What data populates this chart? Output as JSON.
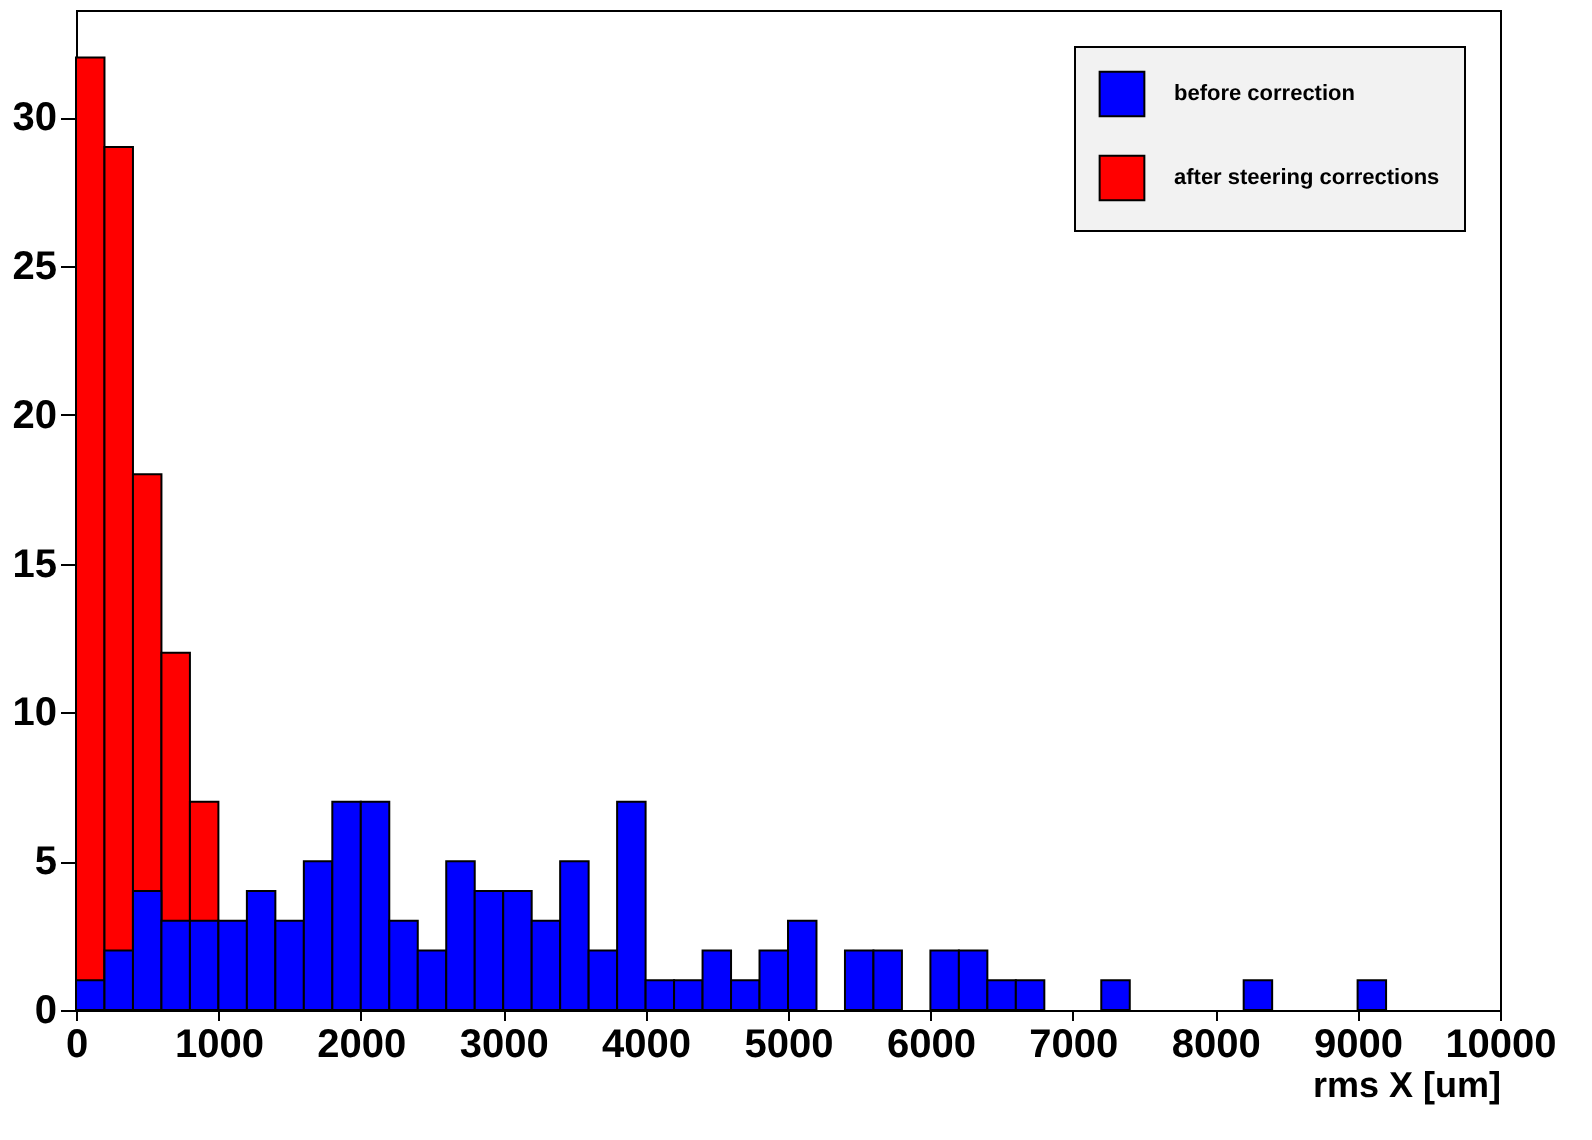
{
  "chart_data": {
    "type": "histogram",
    "xlabel": "rms X [um]",
    "bins": [
      0,
      200,
      400,
      600,
      800,
      1000,
      1200,
      1400,
      1600,
      1800,
      2000,
      2200,
      2400,
      2600,
      2800,
      3000,
      3200,
      3400,
      3600,
      3800,
      4000,
      4200,
      4400,
      4600,
      4800,
      5000,
      5200,
      5400,
      5600,
      5800,
      6000,
      6200,
      6400,
      6600,
      6800,
      7000,
      7200,
      7400,
      7600,
      7800,
      8000,
      8200,
      8400,
      8600,
      8800,
      9000,
      9200,
      9400,
      9600,
      9800,
      10000
    ],
    "series": [
      {
        "name": "before correction",
        "color": "#0000ff",
        "values": [
          1,
          2,
          4,
          3,
          3,
          3,
          4,
          3,
          5,
          7,
          7,
          3,
          2,
          5,
          4,
          4,
          3,
          5,
          2,
          7,
          1,
          1,
          2,
          1,
          2,
          3,
          0,
          2,
          2,
          0,
          2,
          2,
          1,
          1,
          0,
          0,
          1,
          0,
          0,
          0,
          0,
          1,
          0,
          0,
          0,
          1,
          0,
          0,
          0,
          0
        ]
      },
      {
        "name": "after steering corrections",
        "color": "#ff0000",
        "values": [
          32,
          29,
          18,
          12,
          7,
          0,
          0,
          0,
          0,
          0,
          0,
          0,
          0,
          0,
          0,
          0,
          0,
          0,
          0,
          0,
          0,
          0,
          0,
          0,
          0,
          0,
          0,
          0,
          0,
          0,
          0,
          0,
          0,
          0,
          0,
          0,
          0,
          0,
          0,
          0,
          0,
          0,
          0,
          0,
          0,
          0,
          0,
          0,
          0,
          0
        ]
      }
    ],
    "xlim": [
      0,
      10000
    ],
    "xticks": [
      0,
      1000,
      2000,
      3000,
      4000,
      5000,
      6000,
      7000,
      8000,
      9000,
      10000
    ],
    "ylim": [
      0,
      33.6
    ],
    "yticks": [
      0,
      5,
      10,
      15,
      20,
      25,
      30
    ],
    "legend": "top right",
    "grid": false
  }
}
